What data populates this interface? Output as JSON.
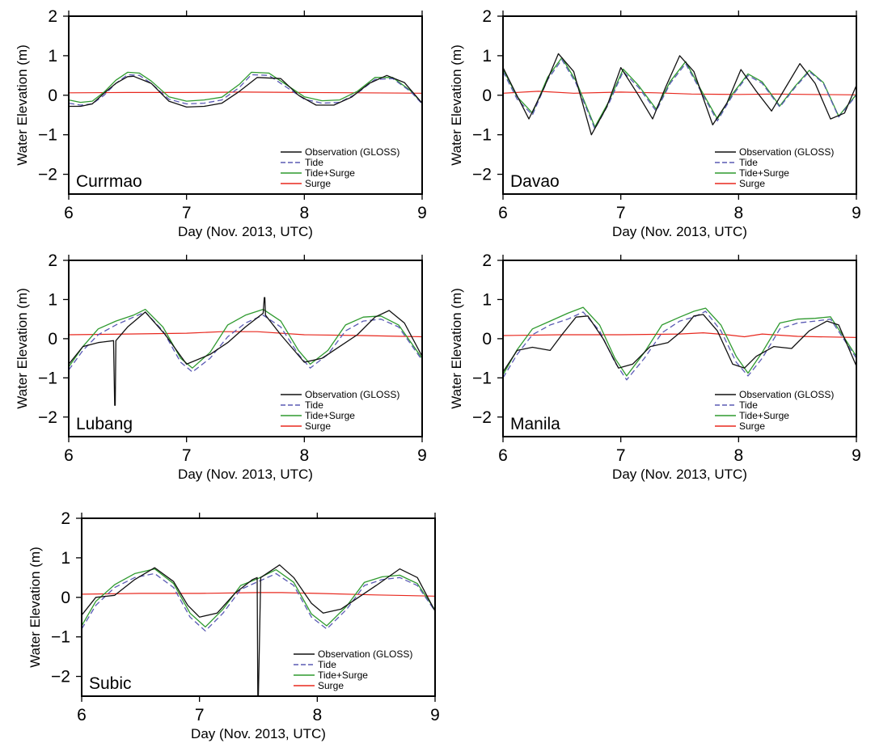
{
  "colors": {
    "observation": "#111111",
    "tide": "#5a5ab4",
    "tide_surge": "#2f9a2f",
    "surge": "#e8281e",
    "frame": "#000000"
  },
  "chart_data": [
    {
      "type": "line",
      "station": "Currmao",
      "xlabel": "Day (Nov. 2013, UTC)",
      "ylabel": "Water Elevation (m)",
      "xlim": [
        6,
        9
      ],
      "ylim": [
        -2.5,
        2
      ],
      "xticks": [
        6,
        7,
        8,
        9
      ],
      "yticks": [
        -2,
        -1,
        0,
        1,
        2
      ],
      "legend": [
        "Observation (GLOSS)",
        "Tide",
        "Tide+Surge",
        "Surge"
      ],
      "series": [
        {
          "name": "Observation (GLOSS)",
          "x": [
            6,
            6.1,
            6.2,
            6.3,
            6.4,
            6.5,
            6.55,
            6.7,
            6.85,
            7.0,
            7.15,
            7.3,
            7.45,
            7.6,
            7.8,
            7.95,
            8.1,
            8.25,
            8.4,
            8.55,
            8.7,
            8.85,
            9.0
          ],
          "y": [
            -0.28,
            -0.28,
            -0.22,
            0.05,
            0.3,
            0.47,
            0.48,
            0.3,
            -0.15,
            -0.3,
            -0.28,
            -0.2,
            0.1,
            0.45,
            0.42,
            0.0,
            -0.25,
            -0.25,
            -0.05,
            0.3,
            0.5,
            0.32,
            -0.2
          ]
        },
        {
          "name": "Tide",
          "x": [
            6,
            6.1,
            6.2,
            6.3,
            6.4,
            6.5,
            6.6,
            6.7,
            6.85,
            7.0,
            7.15,
            7.3,
            7.45,
            7.55,
            7.7,
            7.85,
            8.0,
            8.15,
            8.3,
            8.45,
            8.6,
            8.75,
            8.9,
            9.0
          ],
          "y": [
            -0.2,
            -0.25,
            -0.22,
            0.0,
            0.3,
            0.52,
            0.5,
            0.3,
            -0.1,
            -0.22,
            -0.2,
            -0.12,
            0.2,
            0.52,
            0.5,
            0.2,
            -0.1,
            -0.2,
            -0.18,
            0.05,
            0.4,
            0.42,
            0.1,
            -0.22
          ]
        },
        {
          "name": "Tide+Surge",
          "x": [
            6,
            6.1,
            6.2,
            6.3,
            6.4,
            6.5,
            6.6,
            6.7,
            6.85,
            7.0,
            7.15,
            7.3,
            7.45,
            7.55,
            7.7,
            7.85,
            8.0,
            8.15,
            8.3,
            8.45,
            8.6,
            8.75,
            8.9,
            9.0
          ],
          "y": [
            -0.12,
            -0.18,
            -0.15,
            0.08,
            0.38,
            0.58,
            0.56,
            0.36,
            -0.04,
            -0.15,
            -0.12,
            -0.05,
            0.28,
            0.58,
            0.56,
            0.26,
            -0.04,
            -0.14,
            -0.12,
            0.1,
            0.45,
            0.45,
            0.12,
            -0.2
          ]
        },
        {
          "name": "Surge",
          "x": [
            6,
            6.5,
            7,
            7.5,
            8,
            8.5,
            9
          ],
          "y": [
            0.06,
            0.07,
            0.07,
            0.08,
            0.07,
            0.06,
            0.05
          ]
        }
      ]
    },
    {
      "type": "line",
      "station": "Davao",
      "xlabel": "Day (Nov. 2013, UTC)",
      "ylabel": "Water Elevation (m)",
      "xlim": [
        6,
        9
      ],
      "ylim": [
        -2.5,
        2
      ],
      "xticks": [
        6,
        7,
        8,
        9
      ],
      "yticks": [
        -2,
        -1,
        0,
        1,
        2
      ],
      "legend": [
        "Observation (GLOSS)",
        "Tide",
        "Tide+Surge",
        "Surge"
      ],
      "series": [
        {
          "name": "Observation (GLOSS)",
          "x": [
            6,
            6.1,
            6.22,
            6.35,
            6.47,
            6.6,
            6.75,
            6.88,
            7.0,
            7.15,
            7.27,
            7.38,
            7.5,
            7.62,
            7.78,
            7.9,
            8.02,
            8.15,
            8.28,
            8.4,
            8.52,
            8.65,
            8.78,
            8.9,
            9.0
          ],
          "y": [
            0.7,
            0.1,
            -0.6,
            0.2,
            1.05,
            0.6,
            -1.0,
            -0.3,
            0.7,
            0.0,
            -0.6,
            0.2,
            1.0,
            0.6,
            -0.75,
            -0.2,
            0.65,
            0.1,
            -0.4,
            0.2,
            0.8,
            0.3,
            -0.6,
            -0.45,
            0.25
          ]
        },
        {
          "name": "Tide",
          "x": [
            6,
            6.12,
            6.25,
            6.38,
            6.5,
            6.62,
            6.78,
            6.9,
            7.02,
            7.15,
            7.3,
            7.42,
            7.55,
            7.68,
            7.82,
            7.95,
            8.08,
            8.2,
            8.35,
            8.48,
            8.6,
            8.72,
            8.85,
            9.0
          ],
          "y": [
            0.6,
            -0.1,
            -0.5,
            0.4,
            0.9,
            0.3,
            -0.85,
            -0.2,
            0.6,
            0.2,
            -0.4,
            0.3,
            0.8,
            0.1,
            -0.65,
            0.0,
            0.5,
            0.3,
            -0.3,
            0.2,
            0.6,
            0.3,
            -0.55,
            0.0
          ]
        },
        {
          "name": "Tide+Surge",
          "x": [
            6,
            6.12,
            6.25,
            6.38,
            6.5,
            6.62,
            6.78,
            6.9,
            7.02,
            7.15,
            7.3,
            7.42,
            7.55,
            7.68,
            7.82,
            7.95,
            8.08,
            8.2,
            8.35,
            8.48,
            8.6,
            8.72,
            8.85,
            9.0
          ],
          "y": [
            0.66,
            -0.04,
            -0.45,
            0.46,
            0.95,
            0.36,
            -0.8,
            -0.15,
            0.66,
            0.25,
            -0.35,
            0.35,
            0.85,
            0.14,
            -0.6,
            0.04,
            0.54,
            0.34,
            -0.27,
            0.23,
            0.63,
            0.32,
            -0.53,
            0.02
          ]
        },
        {
          "name": "Surge",
          "x": [
            6,
            6.3,
            6.6,
            7,
            7.3,
            7.6,
            8,
            8.3,
            8.6,
            9
          ],
          "y": [
            0.05,
            0.1,
            0.05,
            0.08,
            0.06,
            0.03,
            0.02,
            0.03,
            0.02,
            0.01
          ]
        }
      ]
    },
    {
      "type": "line",
      "station": "Lubang",
      "xlabel": "Day (Nov. 2013, UTC)",
      "ylabel": "Water Elevation (m)",
      "xlim": [
        6,
        9
      ],
      "ylim": [
        -2.5,
        2
      ],
      "xticks": [
        6,
        7,
        8,
        9
      ],
      "yticks": [
        -2,
        -1,
        0,
        1,
        2
      ],
      "legend": [
        "Observation (GLOSS)",
        "Tide",
        "Tide+Surge",
        "Surge"
      ],
      "series": [
        {
          "name": "Observation (GLOSS)",
          "x": [
            6,
            6.12,
            6.25,
            6.38,
            6.39,
            6.395,
            6.4,
            6.5,
            6.65,
            6.82,
            7.0,
            7.2,
            7.35,
            7.5,
            7.65,
            7.66,
            7.665,
            7.67,
            7.8,
            8.0,
            8.15,
            8.3,
            8.45,
            8.6,
            8.72,
            8.85,
            9.0
          ],
          "y": [
            -0.65,
            -0.2,
            -0.1,
            -0.05,
            -1.7,
            -1.7,
            -0.05,
            0.3,
            0.68,
            0.1,
            -0.65,
            -0.4,
            -0.1,
            0.3,
            0.65,
            1.05,
            1.05,
            0.6,
            0.1,
            -0.6,
            -0.5,
            -0.2,
            0.1,
            0.55,
            0.72,
            0.4,
            -0.45
          ]
        },
        {
          "name": "Tide",
          "x": [
            6,
            6.12,
            6.25,
            6.4,
            6.55,
            6.65,
            6.8,
            6.95,
            7.05,
            7.2,
            7.35,
            7.5,
            7.65,
            7.8,
            7.95,
            8.05,
            8.2,
            8.35,
            8.5,
            8.65,
            8.8,
            9.0
          ],
          "y": [
            -0.8,
            -0.3,
            0.1,
            0.35,
            0.55,
            0.68,
            0.2,
            -0.6,
            -0.85,
            -0.5,
            0.05,
            0.4,
            0.6,
            0.3,
            -0.4,
            -0.75,
            -0.4,
            0.2,
            0.45,
            0.5,
            0.3,
            -0.55
          ]
        },
        {
          "name": "Tide+Surge",
          "x": [
            6,
            6.12,
            6.25,
            6.4,
            6.55,
            6.65,
            6.8,
            6.95,
            7.05,
            7.2,
            7.35,
            7.5,
            7.65,
            7.8,
            7.95,
            8.05,
            8.2,
            8.35,
            8.5,
            8.65,
            8.8,
            9.0
          ],
          "y": [
            -0.72,
            -0.2,
            0.25,
            0.45,
            0.6,
            0.75,
            0.3,
            -0.5,
            -0.75,
            -0.35,
            0.35,
            0.6,
            0.75,
            0.45,
            -0.3,
            -0.65,
            -0.3,
            0.35,
            0.55,
            0.58,
            0.35,
            -0.5
          ]
        },
        {
          "name": "Surge",
          "x": [
            6,
            6.5,
            7,
            7.3,
            7.6,
            8,
            8.5,
            9
          ],
          "y": [
            0.1,
            0.12,
            0.14,
            0.18,
            0.18,
            0.1,
            0.08,
            0.05
          ]
        }
      ]
    },
    {
      "type": "line",
      "station": "Manila",
      "xlabel": "Day (Nov. 2013, UTC)",
      "ylabel": "Water Elevation (m)",
      "xlim": [
        6,
        9
      ],
      "ylim": [
        -2.5,
        2
      ],
      "xticks": [
        6,
        7,
        8,
        9
      ],
      "yticks": [
        -2,
        -1,
        0,
        1,
        2
      ],
      "legend": [
        "Observation (GLOSS)",
        "Tide",
        "Tide+Surge",
        "Surge"
      ],
      "series": [
        {
          "name": "Observation (GLOSS)",
          "x": [
            6,
            6.12,
            6.25,
            6.4,
            6.5,
            6.62,
            6.72,
            6.85,
            6.98,
            7.1,
            7.25,
            7.4,
            7.52,
            7.62,
            7.7,
            7.82,
            7.95,
            8.05,
            8.15,
            8.3,
            8.45,
            8.6,
            8.75,
            8.85,
            9.0
          ],
          "y": [
            -0.85,
            -0.3,
            -0.22,
            -0.3,
            0.1,
            0.55,
            0.58,
            0.0,
            -0.75,
            -0.65,
            -0.2,
            -0.1,
            0.2,
            0.58,
            0.62,
            0.2,
            -0.65,
            -0.75,
            -0.45,
            -0.2,
            -0.25,
            0.2,
            0.45,
            0.35,
            -0.7
          ]
        },
        {
          "name": "Tide",
          "x": [
            6,
            6.12,
            6.25,
            6.4,
            6.55,
            6.68,
            6.82,
            6.95,
            7.05,
            7.2,
            7.35,
            7.5,
            7.62,
            7.72,
            7.85,
            7.98,
            8.08,
            8.2,
            8.35,
            8.5,
            8.65,
            8.78,
            9.0
          ],
          "y": [
            -1.0,
            -0.4,
            0.1,
            0.35,
            0.5,
            0.68,
            0.2,
            -0.6,
            -1.05,
            -0.5,
            0.15,
            0.45,
            0.55,
            0.7,
            0.2,
            -0.6,
            -0.95,
            -0.5,
            0.25,
            0.4,
            0.45,
            0.5,
            -0.5
          ]
        },
        {
          "name": "Tide+Surge",
          "x": [
            6,
            6.12,
            6.25,
            6.4,
            6.55,
            6.68,
            6.82,
            6.95,
            7.05,
            7.2,
            7.35,
            7.5,
            7.62,
            7.72,
            7.85,
            7.98,
            8.08,
            8.2,
            8.35,
            8.5,
            8.65,
            8.78,
            9.0
          ],
          "y": [
            -0.92,
            -0.28,
            0.25,
            0.45,
            0.65,
            0.8,
            0.35,
            -0.5,
            -0.95,
            -0.35,
            0.35,
            0.55,
            0.7,
            0.78,
            0.35,
            -0.45,
            -0.88,
            -0.35,
            0.4,
            0.5,
            0.52,
            0.56,
            -0.45
          ]
        },
        {
          "name": "Surge",
          "x": [
            6,
            6.5,
            7,
            7.5,
            7.7,
            7.9,
            8.05,
            8.2,
            8.5,
            9
          ],
          "y": [
            0.08,
            0.1,
            0.1,
            0.12,
            0.15,
            0.1,
            0.05,
            0.12,
            0.06,
            0.03
          ]
        }
      ]
    },
    {
      "type": "line",
      "station": "Subic",
      "xlabel": "Day (Nov. 2013, UTC)",
      "ylabel": "Water Elevation (m)",
      "xlim": [
        6,
        9
      ],
      "ylim": [
        -2.5,
        2
      ],
      "xticks": [
        6,
        7,
        8,
        9
      ],
      "yticks": [
        -2,
        -1,
        0,
        1,
        2
      ],
      "legend": [
        "Observation (GLOSS)",
        "Tide",
        "Tide+Surge",
        "Surge"
      ],
      "series": [
        {
          "name": "Observation (GLOSS)",
          "x": [
            6,
            6.12,
            6.28,
            6.45,
            6.62,
            6.78,
            6.9,
            7.0,
            7.15,
            7.3,
            7.45,
            7.49,
            7.495,
            7.5,
            7.52,
            7.62,
            7.68,
            7.8,
            7.95,
            8.05,
            8.2,
            8.35,
            8.5,
            8.7,
            8.85,
            9.0
          ],
          "y": [
            -0.45,
            0.0,
            0.05,
            0.45,
            0.75,
            0.4,
            -0.2,
            -0.5,
            -0.4,
            0.1,
            0.45,
            0.5,
            -2.5,
            -2.5,
            0.5,
            0.7,
            0.82,
            0.5,
            -0.15,
            -0.4,
            -0.3,
            0.0,
            0.3,
            0.72,
            0.5,
            -0.35
          ]
        },
        {
          "name": "Tide",
          "x": [
            6,
            6.12,
            6.28,
            6.45,
            6.62,
            6.78,
            6.92,
            7.05,
            7.2,
            7.35,
            7.5,
            7.65,
            7.8,
            7.95,
            8.08,
            8.25,
            8.4,
            8.55,
            8.7,
            8.85,
            9.0
          ],
          "y": [
            -0.8,
            -0.2,
            0.25,
            0.5,
            0.6,
            0.25,
            -0.5,
            -0.85,
            -0.4,
            0.2,
            0.4,
            0.6,
            0.3,
            -0.5,
            -0.8,
            -0.3,
            0.3,
            0.45,
            0.5,
            0.3,
            -0.35
          ]
        },
        {
          "name": "Tide+Surge",
          "x": [
            6,
            6.12,
            6.28,
            6.45,
            6.62,
            6.78,
            6.92,
            7.05,
            7.2,
            7.35,
            7.5,
            7.65,
            7.8,
            7.95,
            8.08,
            8.25,
            8.4,
            8.55,
            8.7,
            8.85,
            9.0
          ],
          "y": [
            -0.72,
            -0.1,
            0.32,
            0.6,
            0.72,
            0.35,
            -0.4,
            -0.75,
            -0.3,
            0.3,
            0.48,
            0.7,
            0.38,
            -0.42,
            -0.72,
            -0.22,
            0.38,
            0.52,
            0.56,
            0.35,
            -0.32
          ]
        },
        {
          "name": "Surge",
          "x": [
            6,
            6.5,
            7,
            7.5,
            7.7,
            8,
            8.5,
            9
          ],
          "y": [
            0.08,
            0.1,
            0.1,
            0.12,
            0.12,
            0.1,
            0.06,
            0.03
          ]
        }
      ]
    }
  ]
}
